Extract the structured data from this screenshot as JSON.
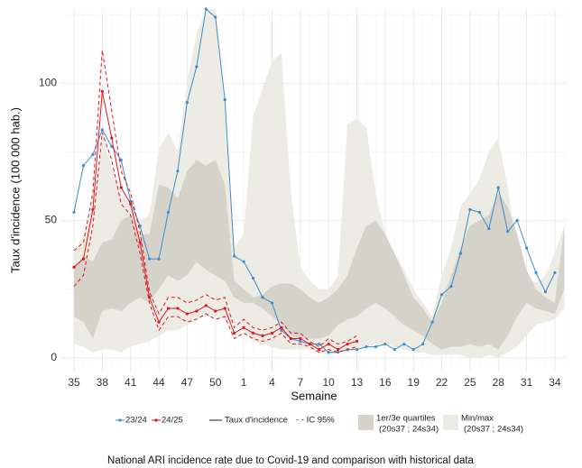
{
  "chart_data": {
    "type": "line",
    "caption": "National ARI incidence rate due to Covid-19  and comparison with historical data",
    "x_label": "Semaine",
    "y_label": "Taux d'incidence (100 000 hab.)",
    "categories": [
      35,
      null,
      null,
      38,
      null,
      null,
      41,
      null,
      null,
      44,
      null,
      null,
      47,
      null,
      null,
      50,
      null,
      null,
      1,
      null,
      null,
      4,
      null,
      null,
      7,
      null,
      null,
      10,
      null,
      null,
      13,
      null,
      null,
      16,
      null,
      null,
      19,
      null,
      null,
      22,
      null,
      null,
      25,
      null,
      null,
      28,
      null,
      null,
      31,
      null,
      null,
      34,
      null
    ],
    "ylim": [
      -5,
      127
    ],
    "yticks": [
      0,
      50,
      100
    ],
    "minor_yticks": [
      25,
      75,
      125
    ],
    "grid": true,
    "bands": [
      {
        "name": [
          "Min/max",
          "(20s37 ; 24s34)"
        ],
        "color": "#ecebe4",
        "lower": [
          5,
          4,
          2,
          3,
          3,
          2,
          4,
          5,
          6,
          8,
          10,
          10,
          12,
          14,
          15,
          15,
          14,
          12,
          10,
          6,
          5,
          4,
          3,
          3,
          3,
          3,
          2,
          1,
          2,
          2,
          3,
          4,
          5,
          5,
          4,
          3,
          2,
          2,
          1,
          1,
          1,
          1,
          0,
          0,
          1,
          0,
          2,
          4,
          8,
          12,
          13,
          14,
          18
        ],
        "upper": [
          38,
          45,
          55,
          80,
          70,
          60,
          55,
          50,
          52,
          76,
          82,
          75,
          100,
          118,
          127,
          127,
          90,
          40,
          45,
          88,
          98,
          108,
          111,
          60,
          33,
          28,
          25,
          25,
          30,
          85,
          87,
          84,
          60,
          45,
          38,
          32,
          25,
          20,
          15,
          30,
          40,
          55,
          60,
          65,
          75,
          80,
          62,
          40,
          30,
          27,
          30,
          38,
          48
        ]
      },
      {
        "name": [
          "1er/3e quartiles",
          "(20s37 ; 24s34)"
        ],
        "color": "#d5d2c9",
        "lower": [
          15,
          13,
          7,
          17,
          18,
          17,
          20,
          22,
          20,
          25,
          30,
          28,
          30,
          35,
          32,
          30,
          28,
          22,
          20,
          20,
          18,
          15,
          12,
          8,
          7,
          7,
          7,
          8,
          12,
          14,
          15,
          18,
          20,
          18,
          15,
          12,
          10,
          8,
          5,
          3,
          4,
          4,
          5,
          4,
          5,
          3,
          8,
          15,
          20,
          18,
          17,
          16,
          25
        ],
        "upper": [
          33,
          37,
          35,
          42,
          43,
          50,
          52,
          45,
          45,
          63,
          62,
          58,
          68,
          72,
          70,
          72,
          63,
          28,
          25,
          22,
          23,
          26,
          27,
          27,
          25,
          22,
          20,
          22,
          25,
          30,
          40,
          48,
          50,
          45,
          38,
          30,
          22,
          18,
          13,
          20,
          30,
          40,
          48,
          50,
          52,
          60,
          55,
          45,
          32,
          25,
          22,
          20,
          48
        ]
      }
    ],
    "series": [
      {
        "name": "23/24",
        "color": "#3f8ccb",
        "values": [
          53,
          70,
          74,
          83,
          77,
          72,
          57,
          48,
          36,
          36,
          53,
          68,
          93,
          106,
          127,
          124,
          94,
          37,
          35,
          29,
          22,
          20,
          10,
          7,
          6,
          5,
          5,
          2,
          2,
          3,
          3,
          4,
          4,
          5,
          3,
          5,
          3,
          5,
          13,
          23,
          26,
          38,
          54,
          53,
          47,
          62,
          46,
          50,
          40,
          31,
          24,
          31,
          null
        ]
      },
      {
        "name": "24/25",
        "color": "#e0161c",
        "values": [
          33,
          36,
          54,
          97,
          80,
          62,
          56,
          42,
          22,
          13,
          18,
          18,
          16,
          17,
          19,
          17,
          18,
          9,
          11,
          9,
          8,
          9,
          11,
          7,
          7,
          5,
          3,
          5,
          3,
          5,
          6,
          null,
          null,
          null,
          null,
          null,
          null,
          null,
          null,
          null,
          null,
          null,
          null,
          null,
          null,
          null,
          null,
          null,
          null,
          null,
          null,
          null,
          null
        ],
        "ci_lower": [
          26,
          30,
          48,
          82,
          72,
          56,
          52,
          38,
          20,
          10,
          15,
          15,
          13,
          14,
          16,
          14,
          15,
          7,
          9,
          7,
          6,
          7,
          9,
          5,
          5,
          4,
          2,
          3,
          2,
          3,
          4,
          null,
          null,
          null,
          null,
          null,
          null,
          null,
          null,
          null,
          null,
          null,
          null,
          null,
          null,
          null,
          null,
          null,
          null,
          null,
          null,
          null,
          null
        ],
        "ci_upper": [
          39,
          42,
          60,
          112,
          90,
          68,
          60,
          46,
          24,
          16,
          22,
          22,
          20,
          21,
          23,
          21,
          22,
          11,
          14,
          11,
          10,
          11,
          13,
          9,
          9,
          6,
          4,
          7,
          5,
          6,
          8,
          null,
          null,
          null,
          null,
          null,
          null,
          null,
          null,
          null,
          null,
          null,
          null,
          null,
          null,
          null,
          null,
          null,
          null,
          null,
          null,
          null,
          null
        ]
      }
    ],
    "legend": {
      "line": "Taux d'incidence",
      "ci": "- - IC 95%"
    }
  }
}
